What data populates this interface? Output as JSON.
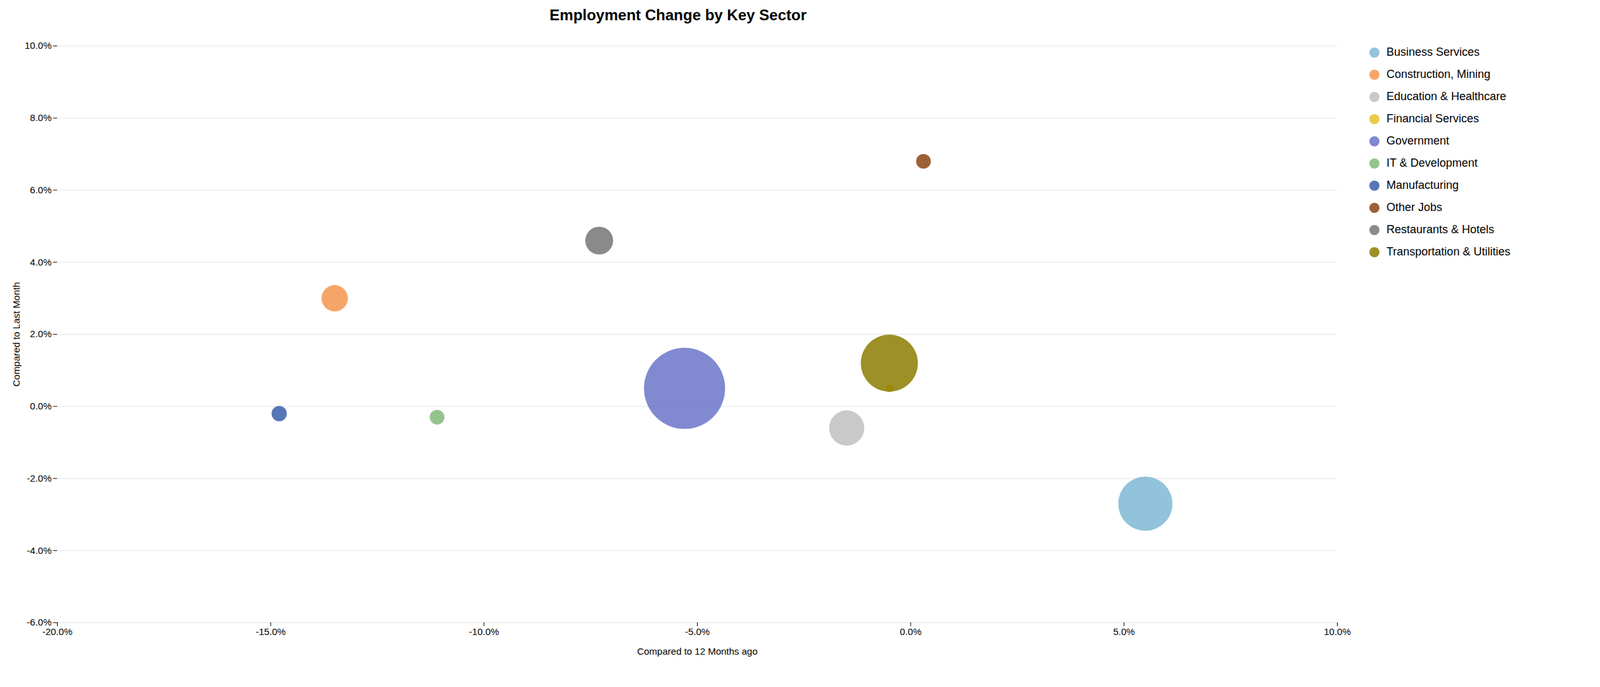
{
  "chart_data": {
    "type": "scatter",
    "title": "Employment Change by Key Sector",
    "xlabel": "Compared to 12 Months ago",
    "ylabel": "Compared to Last Month",
    "series": [
      {
        "name": "Business Services",
        "color": "#7eb8d4",
        "x": [
          0.055
        ],
        "values": [
          -0.027
        ],
        "sizes": [
          3800
        ]
      },
      {
        "name": "Construction, Mining",
        "color": "#f4954e",
        "x": [
          -0.135
        ],
        "values": [
          0.03
        ],
        "sizes": [
          900
        ]
      },
      {
        "name": "Education & Healthcare",
        "color": "#c0c0c0",
        "x": [
          -0.015
        ],
        "values": [
          -0.006
        ],
        "sizes": [
          1600
        ]
      },
      {
        "name": "Financial Services",
        "color": "#e8c32a",
        "x": [
          -0.005
        ],
        "values": [
          0.005
        ],
        "sizes": [
          80
        ]
      },
      {
        "name": "Government",
        "color": "#6b74c8",
        "x": [
          -0.053
        ],
        "values": [
          0.005
        ],
        "sizes": [
          8500
        ]
      },
      {
        "name": "IT & Development",
        "color": "#82b87a",
        "x": [
          -0.111
        ],
        "values": [
          -0.003
        ],
        "sizes": [
          280
        ]
      },
      {
        "name": "Manufacturing",
        "color": "#3a5ea8",
        "x": [
          -0.148
        ],
        "values": [
          -0.002
        ],
        "sizes": [
          300
        ]
      },
      {
        "name": "Other Jobs",
        "color": "#8b4513",
        "x": [
          0.003
        ],
        "values": [
          0.068
        ],
        "sizes": [
          280
        ]
      },
      {
        "name": "Restaurants & Hotels",
        "color": "#767676",
        "x": [
          -0.073
        ],
        "values": [
          0.046
        ],
        "sizes": [
          1000
        ]
      },
      {
        "name": "Transportation & Utilities",
        "color": "#8b7d00",
        "x": [
          -0.005
        ],
        "values": [
          0.012
        ],
        "sizes": [
          4200
        ]
      }
    ],
    "xlim": [
      -0.2,
      0.1
    ],
    "ylim": [
      -0.06,
      0.1
    ],
    "xticks": [
      {
        "value": -0.2,
        "label": "-20.0%"
      },
      {
        "value": -0.15,
        "label": "-15.0%"
      },
      {
        "value": -0.1,
        "label": "-10.0%"
      },
      {
        "value": -0.05,
        "label": "-5.0%"
      },
      {
        "value": 0.0,
        "label": "0.0%"
      },
      {
        "value": 0.05,
        "label": "5.0%"
      },
      {
        "value": 0.1,
        "label": "10.0%"
      }
    ],
    "yticks": [
      {
        "value": -0.06,
        "label": "-6.0%"
      },
      {
        "value": -0.04,
        "label": "-4.0%"
      },
      {
        "value": -0.02,
        "label": "-2.0%"
      },
      {
        "value": 0.0,
        "label": "0.0%"
      },
      {
        "value": 0.02,
        "label": "2.0%"
      },
      {
        "value": 0.04,
        "label": "4.0%"
      },
      {
        "value": 0.06,
        "label": "6.0%"
      },
      {
        "value": 0.08,
        "label": "8.0%"
      },
      {
        "value": 0.1,
        "label": "10.0%"
      }
    ],
    "grid": "y",
    "legend": "right"
  }
}
